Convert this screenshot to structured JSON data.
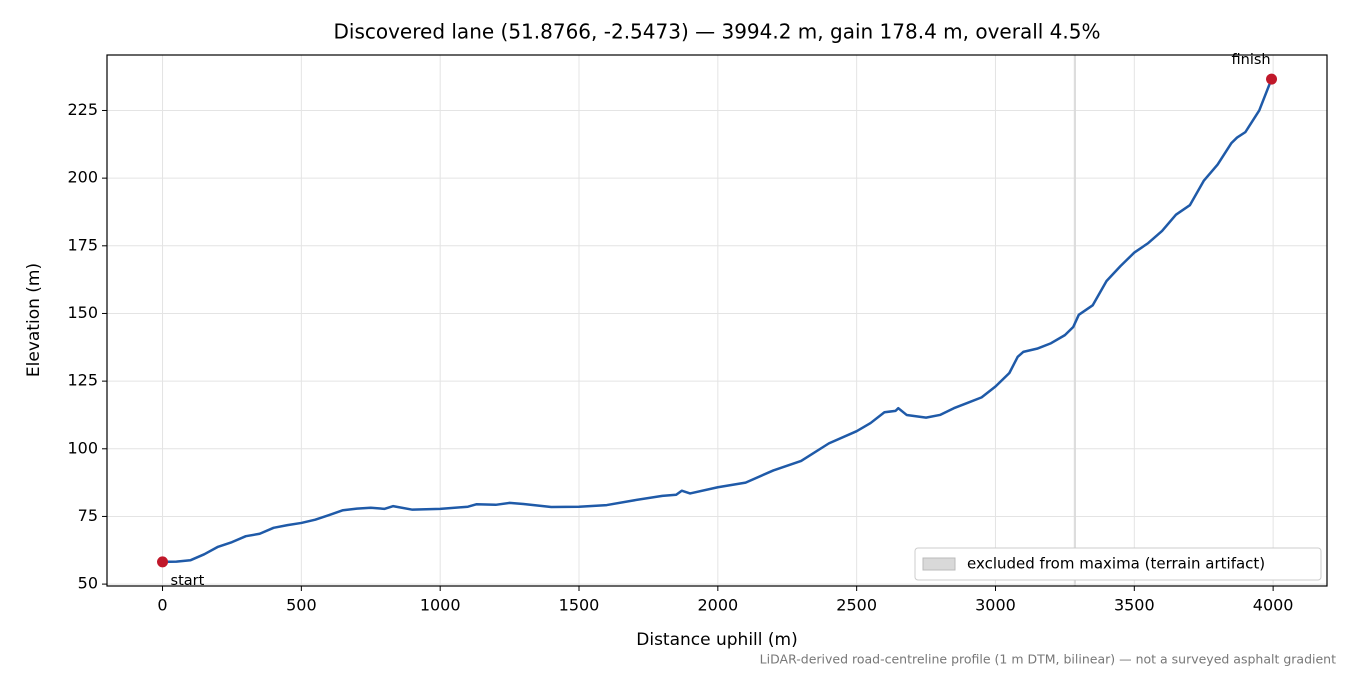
{
  "chart_data": {
    "type": "line",
    "title": "Discovered lane (51.8766, -2.5473) — 3994.2 m, gain 178.4 m, overall 4.5%",
    "x_label": "Distance uphill (m)",
    "y_label": "Elevation (m)",
    "footnote": "LiDAR-derived road-centreline profile (1 m DTM, bilinear) — not a surveyed asphalt gradient",
    "xlim": [
      -200,
      4194
    ],
    "ylim": [
      49.3,
      245.5
    ],
    "xticks": [
      0,
      500,
      1000,
      1500,
      2000,
      2500,
      3000,
      3500,
      4000
    ],
    "yticks": [
      50,
      75,
      100,
      125,
      150,
      175,
      200,
      225
    ],
    "grid": true,
    "series": [
      {
        "color": "#1f5aa8",
        "x": [
          0,
          50,
          100,
          150,
          200,
          250,
          300,
          350,
          400,
          450,
          500,
          550,
          600,
          650,
          700,
          750,
          800,
          830,
          900,
          1000,
          1100,
          1130,
          1200,
          1250,
          1300,
          1400,
          1500,
          1600,
          1700,
          1800,
          1850,
          1870,
          1900,
          2000,
          2100,
          2200,
          2300,
          2400,
          2500,
          2550,
          2600,
          2640,
          2650,
          2680,
          2750,
          2800,
          2850,
          2900,
          2950,
          3000,
          3050,
          3080,
          3100,
          3150,
          3200,
          3250,
          3280,
          3300,
          3350,
          3400,
          3450,
          3500,
          3550,
          3600,
          3650,
          3700,
          3750,
          3800,
          3850,
          3870,
          3900,
          3950,
          3994.2
        ],
        "values": [
          58.2,
          58.3,
          58.8,
          61,
          63.8,
          65.5,
          67.7,
          68.6,
          70.8,
          71.8,
          72.6,
          73.8,
          75.5,
          77.3,
          77.9,
          78.2,
          77.8,
          78.8,
          77.5,
          77.8,
          78.6,
          79.5,
          79.3,
          80,
          79.6,
          78.5,
          78.6,
          79.2,
          81,
          82.6,
          83,
          84.5,
          83.5,
          85.8,
          87.5,
          92,
          95.5,
          102,
          106.5,
          109.5,
          113.5,
          114,
          115,
          112.5,
          111.5,
          112.5,
          115,
          117,
          119,
          123,
          128,
          134,
          135.8,
          137,
          139,
          142,
          145,
          149.5,
          153,
          162,
          167.5,
          172.5,
          176,
          180.5,
          186.5,
          190,
          199,
          205,
          213,
          215,
          217,
          225,
          236.6
        ]
      }
    ],
    "annotations": [
      {
        "text": "start",
        "x": 0,
        "y": 58.2,
        "color": "#c0182a"
      },
      {
        "text": "finish",
        "x": 3994.2,
        "y": 236.6,
        "color": "#c0182a"
      }
    ],
    "excluded_band": {
      "label": "excluded from maxima (terrain artifact)",
      "x": [
        3282,
        3290
      ],
      "color": "#d9d9d9"
    },
    "legend": "lower right"
  }
}
